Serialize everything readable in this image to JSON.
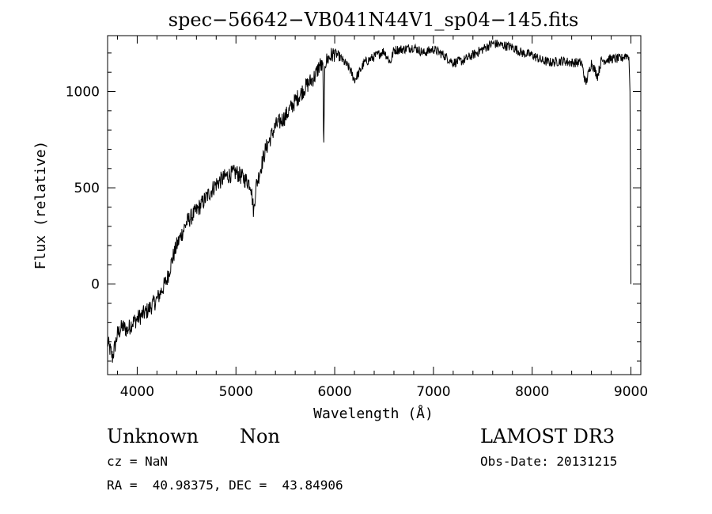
{
  "chart_data": {
    "type": "line",
    "title": "spec−56642−VB041N44V1_sp04−145.fits",
    "xlabel": "Wavelength (Å)",
    "ylabel": "Flux (relative)",
    "xlim": [
      3700,
      9100
    ],
    "ylim": [
      -470,
      1290
    ],
    "xticks": [
      4000,
      5000,
      6000,
      7000,
      8000,
      9000
    ],
    "xtick_labels": [
      "4000",
      "5000",
      "6000",
      "7000",
      "8000",
      "9000"
    ],
    "yticks": [
      0,
      500,
      1000
    ],
    "ytick_labels": [
      "0",
      "500",
      "1000"
    ],
    "grid": false,
    "series": [
      {
        "name": "flux",
        "x": [
          3700,
          3750,
          3800,
          3850,
          3900,
          3950,
          4000,
          4100,
          4200,
          4300,
          4350,
          4400,
          4500,
          4600,
          4700,
          4800,
          4900,
          5000,
          5100,
          5150,
          5180,
          5200,
          5300,
          5400,
          5500,
          5600,
          5700,
          5800,
          5850,
          5880,
          5890,
          5900,
          5950,
          6000,
          6050,
          6100,
          6150,
          6200,
          6250,
          6300,
          6400,
          6500,
          6563,
          6600,
          6700,
          6800,
          6900,
          7000,
          7100,
          7200,
          7300,
          7400,
          7500,
          7600,
          7700,
          7800,
          7900,
          8000,
          8100,
          8200,
          8300,
          8400,
          8500,
          8542,
          8600,
          8662,
          8700,
          8800,
          8900,
          8950,
          8980,
          8990,
          9000
        ],
        "y": [
          -300,
          -380,
          -260,
          -220,
          -240,
          -200,
          -180,
          -140,
          -80,
          20,
          120,
          200,
          320,
          380,
          450,
          520,
          560,
          580,
          540,
          520,
          370,
          500,
          700,
          820,
          870,
          950,
          1020,
          1080,
          1140,
          1120,
          700,
          1150,
          1180,
          1200,
          1180,
          1150,
          1120,
          1060,
          1100,
          1150,
          1180,
          1210,
          1150,
          1215,
          1220,
          1230,
          1200,
          1220,
          1190,
          1150,
          1160,
          1190,
          1220,
          1250,
          1240,
          1230,
          1200,
          1190,
          1160,
          1150,
          1160,
          1150,
          1150,
          1040,
          1150,
          1080,
          1160,
          1170,
          1170,
          1190,
          1180,
          1000,
          0
        ]
      }
    ]
  },
  "footer": {
    "object_class": "Unknown",
    "subclass": "Non",
    "survey": "LAMOST DR3",
    "redshift": "cz = NaN",
    "obs_date": "Obs-Date: 20131215",
    "coords": "RA =  40.98375, DEC =  43.84906"
  }
}
